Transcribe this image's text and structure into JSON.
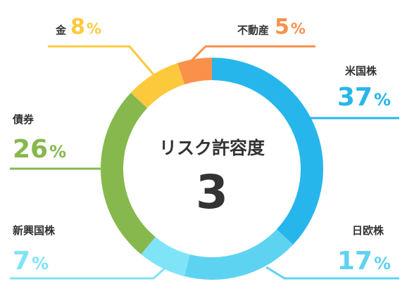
{
  "chart_data": {
    "type": "donut",
    "title": "リスク許容度",
    "center_value": "3",
    "unit": "%",
    "slices": [
      {
        "name": "米国株",
        "value": 37,
        "color": "#27B6EC"
      },
      {
        "name": "日欧株",
        "value": 17,
        "color": "#5ED3F1"
      },
      {
        "name": "新興国株",
        "value": 7,
        "color": "#7FE4F8"
      },
      {
        "name": "債券",
        "value": 26,
        "color": "#86B84D"
      },
      {
        "name": "金",
        "value": 8,
        "color": "#FDC93C"
      },
      {
        "name": "不動産",
        "value": 5,
        "color": "#F9914B"
      }
    ]
  }
}
